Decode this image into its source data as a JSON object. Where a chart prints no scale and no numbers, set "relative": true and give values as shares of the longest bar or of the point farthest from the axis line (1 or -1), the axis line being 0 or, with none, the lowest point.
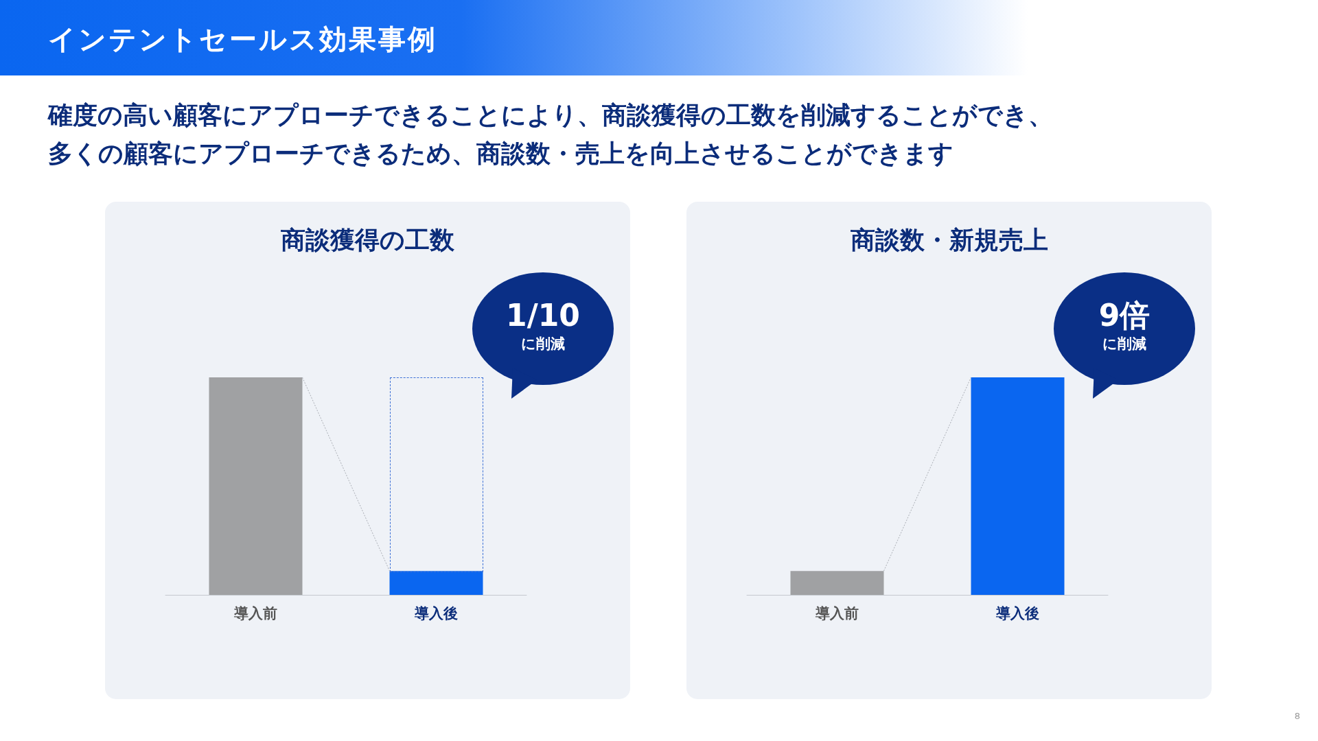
{
  "chart_data": [
    {
      "type": "bar",
      "relative": true,
      "title": "商談獲得の工数",
      "categories": [
        "導入前",
        "導入後"
      ],
      "values": [
        1,
        0.11
      ],
      "colors": [
        "#a0a1a3",
        "#0a66f0"
      ],
      "annotations": [
        "1/10",
        "に削減",
        "インテントセールス効果事例",
        "確度の高い顧客にアプローチできることにより、商談獲得の工数を削減することができ、",
        "多くの顧客にアプローチできるため、商談数・売上を向上させることができます",
        "8"
      ]
    },
    {
      "type": "bar",
      "relative": true,
      "title": "商談数・新規売上",
      "categories": [
        "導入前",
        "導入後"
      ],
      "values": [
        0.11,
        1
      ],
      "colors": [
        "#a0a1a3",
        "#0a66f0"
      ],
      "annotations": [
        "9倍",
        "に削減"
      ]
    }
  ]
}
